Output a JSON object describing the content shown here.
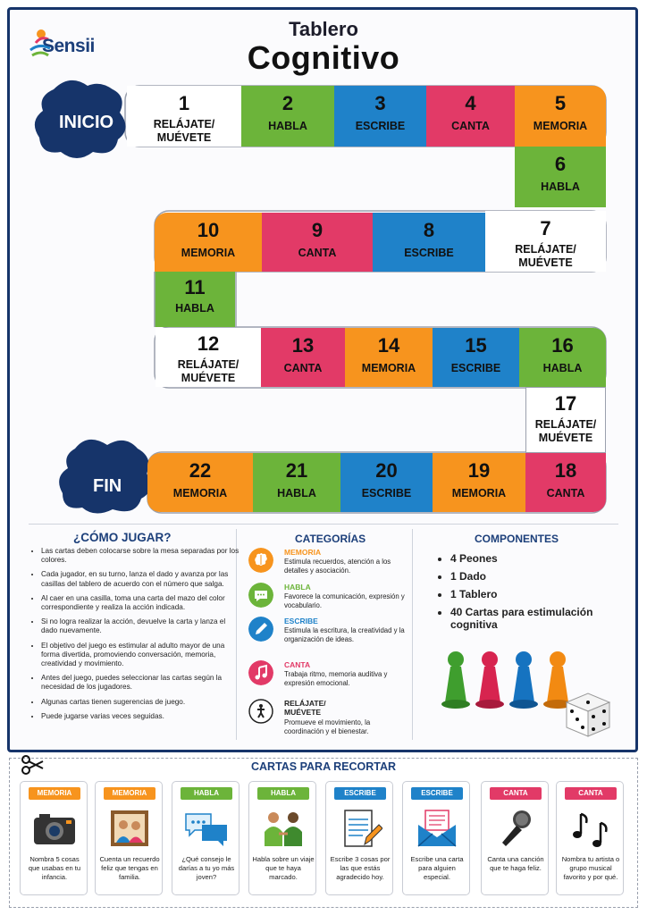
{
  "brand": {
    "logo_text": "Sensii"
  },
  "title": {
    "line1": "Tablero",
    "line2": "Cognitivo"
  },
  "board": {
    "start_label": "INICIO",
    "end_label": "FIN",
    "cells": [
      {
        "num": "1",
        "label": "RELÁJATE/",
        "label2": "MUÉVETE",
        "color": "white"
      },
      {
        "num": "2",
        "label": "HABLA",
        "color": "green"
      },
      {
        "num": "3",
        "label": "ESCRIBE",
        "color": "blue"
      },
      {
        "num": "4",
        "label": "CANTA",
        "color": "pink"
      },
      {
        "num": "5",
        "label": "MEMORIA",
        "color": "orange"
      },
      {
        "num": "6",
        "label": "HABLA",
        "color": "green"
      },
      {
        "num": "7",
        "label": "RELÁJATE/",
        "label2": "MUÉVETE",
        "color": "white"
      },
      {
        "num": "8",
        "label": "ESCRIBE",
        "color": "blue"
      },
      {
        "num": "9",
        "label": "CANTA",
        "color": "pink"
      },
      {
        "num": "10",
        "label": "MEMORIA",
        "color": "orange"
      },
      {
        "num": "11",
        "label": "HABLA",
        "color": "green"
      },
      {
        "num": "12",
        "label": "RELÁJATE/",
        "label2": "MUÉVETE",
        "color": "white"
      },
      {
        "num": "13",
        "label": "CANTA",
        "color": "pink"
      },
      {
        "num": "14",
        "label": "MEMORIA",
        "color": "orange"
      },
      {
        "num": "15",
        "label": "ESCRIBE",
        "color": "blue"
      },
      {
        "num": "16",
        "label": "HABLA",
        "color": "green"
      },
      {
        "num": "17",
        "label": "RELÁJATE/",
        "label2": "MUÉVETE",
        "color": "white"
      },
      {
        "num": "18",
        "label": "CANTA",
        "color": "pink"
      },
      {
        "num": "19",
        "label": "MEMORIA",
        "color": "orange"
      },
      {
        "num": "20",
        "label": "ESCRIBE",
        "color": "blue"
      },
      {
        "num": "21",
        "label": "HABLA",
        "color": "green"
      },
      {
        "num": "22",
        "label": "MEMORIA",
        "color": "orange"
      }
    ]
  },
  "how_to": {
    "title": "¿CÓMO JUGAR?",
    "rules": [
      "Las cartas deben colocarse sobre la mesa separadas por los colores.",
      "Cada jugador, en su turno, lanza el dado y avanza por las casillas del tablero de acuerdo con el número que salga.",
      "Al caer en una casilla, toma una carta del mazo del color correspondiente y realiza la acción indicada.",
      "Si no logra realizar la acción, devuelve la carta y lanza el dado nuevamente.",
      "El objetivo del juego es estimular al adulto mayor de una forma divertida, promoviendo conversación, memoria, creatividad y movimiento.",
      "Antes del juego, puedes seleccionar las cartas según la necesidad de los jugadores.",
      "Algunas cartas tienen sugerencias de juego.",
      "Puede jugarse varias veces seguidas."
    ]
  },
  "categories": {
    "title": "CATEGORÍAS",
    "items": [
      {
        "name": "MEMORIA",
        "desc": "Estimula recuerdos, atención a los detalles y asociación.",
        "color": "#f7941e",
        "icon": "brain-icon"
      },
      {
        "name": "HABLA",
        "desc": "Favorece la comunicación, expresión y vocabulario.",
        "color": "#6cb43a",
        "icon": "speech-bubble-icon"
      },
      {
        "name": "ESCRIBE",
        "desc": "Estimula la escritura, la creatividad y la organización de ideas.",
        "color": "#1f82c9",
        "icon": "pencil-icon"
      },
      {
        "name": "CANTA",
        "desc": "Trabaja ritmo, memoria auditiva y expresión emocional.",
        "color": "#e23a67",
        "icon": "music-note-icon"
      },
      {
        "name": "RELÁJATE/ MUÉVETE",
        "desc": "Promueve el movimiento, la coordinación y el bienestar.",
        "color": "#222222",
        "icon": "person-icon"
      }
    ]
  },
  "components": {
    "title": "COMPONENTES",
    "items": [
      "4 Peones",
      "1 Dado",
      "1 Tablero",
      "40 Cartas para estimulación cognitiva"
    ]
  },
  "cards": {
    "title": "CARTAS PARA RECORTAR",
    "items": [
      {
        "tag": "MEMORIA",
        "text": "Nombra 5 cosas que usabas en tu infancia.",
        "color": "#f7941e",
        "icon": "camera-icon"
      },
      {
        "tag": "MEMORIA",
        "text": "Cuenta un recuerdo feliz que tengas en familia.",
        "color": "#f7941e",
        "icon": "family-photo-icon"
      },
      {
        "tag": "HABLA",
        "text": "¿Qué consejo le darías a tu yo más joven?",
        "color": "#6cb43a",
        "icon": "chat-bubbles-icon"
      },
      {
        "tag": "HABLA",
        "text": "Habla sobre un viaje que te haya marcado.",
        "color": "#6cb43a",
        "icon": "people-talking-icon"
      },
      {
        "tag": "ESCRIBE",
        "text": "Escribe 3 cosas por las que estás agradecido hoy.",
        "color": "#1f82c9",
        "icon": "notepad-icon"
      },
      {
        "tag": "ESCRIBE",
        "text": "Escribe una carta para alguien especial.",
        "color": "#1f82c9",
        "icon": "envelope-icon"
      },
      {
        "tag": "CANTA",
        "text": "Canta una canción que te haga feliz.",
        "color": "#e23a67",
        "icon": "microphone-icon"
      },
      {
        "tag": "CANTA",
        "text": "Nombra tu artista o grupo musical favorito y por qué.",
        "color": "#e23a67",
        "icon": "music-notes-icon"
      }
    ]
  },
  "colors": {
    "navy": "#16346a",
    "green": "#6cb43a",
    "blue": "#1f82c9",
    "pink": "#e23a67",
    "orange": "#f7941e"
  }
}
